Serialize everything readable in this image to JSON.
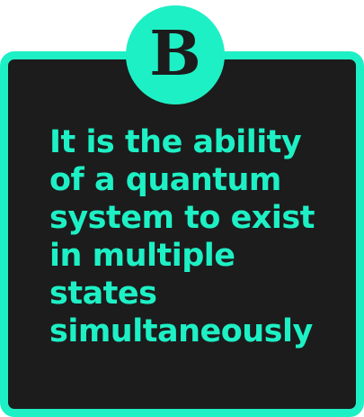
{
  "badge": {
    "letter": "B"
  },
  "answer": {
    "lines": [
      "It is the ability",
      "of a quantum",
      "system to exist",
      "in multiple",
      "states",
      "simultaneously"
    ]
  },
  "colors": {
    "accent": "#1ef0c5",
    "card_background": "#1c1c1c",
    "page_background": "#ffffff"
  }
}
